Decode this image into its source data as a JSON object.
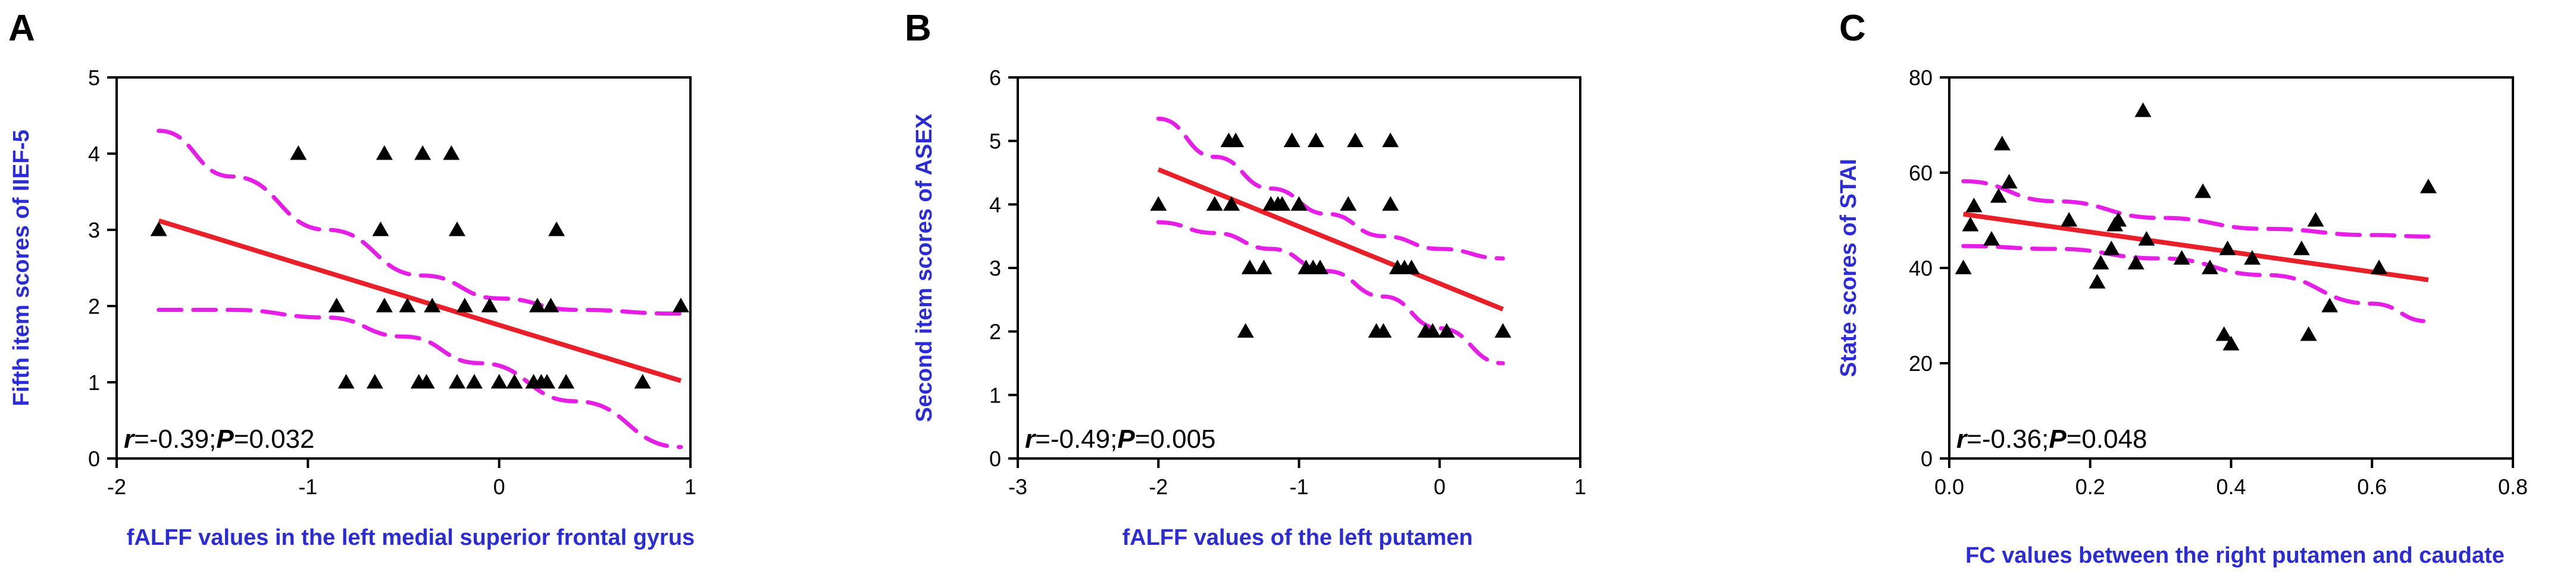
{
  "colors": {
    "regression_line": "#e8202a",
    "ci_band": "#e51fe5",
    "label_text": "#2c2cd6",
    "marker": "#000000"
  },
  "chart_data": [
    {
      "panel": "A",
      "type": "scatter",
      "ylabel": "Fifth item scores of IIEF-5",
      "xlabel": "fALFF values in the left  medial superior frontal gyrus",
      "xlim": [
        -2,
        1
      ],
      "ylim": [
        0,
        5
      ],
      "xticks": [
        "-2",
        "-1",
        "0",
        "1"
      ],
      "yticks": [
        "0",
        "1",
        "2",
        "3",
        "4",
        "5"
      ],
      "stat": {
        "r_label": "r",
        "r_value": "=-0.39;",
        "p_label": "P",
        "p_value": "=0.032"
      },
      "points": [
        [
          -1.78,
          3
        ],
        [
          -1.05,
          4
        ],
        [
          -0.85,
          2
        ],
        [
          -0.8,
          1
        ],
        [
          -0.65,
          1
        ],
        [
          -0.62,
          3
        ],
        [
          -0.6,
          4
        ],
        [
          -0.6,
          2
        ],
        [
          -0.48,
          2
        ],
        [
          -0.42,
          1
        ],
        [
          -0.4,
          4
        ],
        [
          -0.38,
          1
        ],
        [
          -0.35,
          2
        ],
        [
          -0.25,
          4
        ],
        [
          -0.22,
          3
        ],
        [
          -0.22,
          1
        ],
        [
          -0.18,
          2
        ],
        [
          -0.13,
          1
        ],
        [
          -0.05,
          2
        ],
        [
          0.0,
          1
        ],
        [
          0.08,
          1
        ],
        [
          0.18,
          1
        ],
        [
          0.2,
          2
        ],
        [
          0.22,
          1
        ],
        [
          0.25,
          1
        ],
        [
          0.27,
          2
        ],
        [
          0.3,
          3
        ],
        [
          0.35,
          1
        ],
        [
          0.75,
          1
        ],
        [
          0.95,
          2
        ]
      ],
      "fit": {
        "x": [
          -1.78,
          0.95
        ],
        "y": [
          3.12,
          1.02
        ]
      },
      "ci_upper": [
        [
          -1.78,
          4.3
        ],
        [
          -1.4,
          3.7
        ],
        [
          -0.9,
          3.0
        ],
        [
          -0.4,
          2.4
        ],
        [
          0.0,
          2.1
        ],
        [
          0.4,
          1.95
        ],
        [
          0.95,
          1.9
        ]
      ],
      "ci_lower": [
        [
          -1.78,
          1.95
        ],
        [
          -1.4,
          1.95
        ],
        [
          -0.9,
          1.85
        ],
        [
          -0.5,
          1.6
        ],
        [
          -0.1,
          1.25
        ],
        [
          0.4,
          0.75
        ],
        [
          0.95,
          0.15
        ]
      ]
    },
    {
      "panel": "B",
      "type": "scatter",
      "ylabel": "Second item scores of ASEX",
      "xlabel": "fALFF values of the left putamen",
      "xlim": [
        -3,
        1
      ],
      "ylim": [
        0,
        6
      ],
      "xticks": [
        "-3",
        "-2",
        "-1",
        "0",
        "1"
      ],
      "yticks": [
        "0",
        "1",
        "2",
        "3",
        "4",
        "5",
        "6"
      ],
      "stat": {
        "r_label": "r",
        "r_value": "=-0.49;",
        "p_label": "P",
        "p_value": "=0.005"
      },
      "points": [
        [
          -2.0,
          4
        ],
        [
          -1.6,
          4
        ],
        [
          -1.5,
          5
        ],
        [
          -1.48,
          4
        ],
        [
          -1.45,
          5
        ],
        [
          -1.38,
          2
        ],
        [
          -1.35,
          3
        ],
        [
          -1.25,
          3
        ],
        [
          -1.2,
          4
        ],
        [
          -1.15,
          4
        ],
        [
          -1.12,
          4
        ],
        [
          -1.05,
          5
        ],
        [
          -1.0,
          4
        ],
        [
          -0.95,
          3
        ],
        [
          -0.9,
          3
        ],
        [
          -0.88,
          5
        ],
        [
          -0.85,
          3
        ],
        [
          -0.65,
          4
        ],
        [
          -0.6,
          5
        ],
        [
          -0.45,
          2
        ],
        [
          -0.4,
          2
        ],
        [
          -0.35,
          4
        ],
        [
          -0.35,
          5
        ],
        [
          -0.3,
          3
        ],
        [
          -0.25,
          3
        ],
        [
          -0.2,
          3
        ],
        [
          -0.1,
          2
        ],
        [
          -0.05,
          2
        ],
        [
          0.05,
          2
        ],
        [
          0.45,
          2
        ]
      ],
      "fit": {
        "x": [
          -2.0,
          0.45
        ],
        "y": [
          4.55,
          2.35
        ]
      },
      "ci_upper": [
        [
          -2.0,
          5.35
        ],
        [
          -1.6,
          4.75
        ],
        [
          -1.2,
          4.25
        ],
        [
          -0.8,
          3.85
        ],
        [
          -0.4,
          3.5
        ],
        [
          0.0,
          3.3
        ],
        [
          0.45,
          3.15
        ]
      ],
      "ci_lower": [
        [
          -2.0,
          3.72
        ],
        [
          -1.6,
          3.55
        ],
        [
          -1.2,
          3.3
        ],
        [
          -0.8,
          2.95
        ],
        [
          -0.4,
          2.55
        ],
        [
          0.0,
          2.05
        ],
        [
          0.45,
          1.5
        ]
      ]
    },
    {
      "panel": "C",
      "type": "scatter",
      "ylabel": "State scores of STAI",
      "xlabel": "FC values between the right putamen and caudate",
      "xlim": [
        0,
        0.8
      ],
      "ylim": [
        0,
        80
      ],
      "xticks": [
        "0.0",
        "0.2",
        "0.4",
        "0.6",
        "0.8"
      ],
      "yticks": [
        "0",
        "20",
        "40",
        "60",
        "80"
      ],
      "stat": {
        "r_label": "r",
        "r_value": "=-0.36;",
        "p_label": "P",
        "p_value": "=0.048"
      },
      "points": [
        [
          0.02,
          40
        ],
        [
          0.03,
          49
        ],
        [
          0.035,
          53
        ],
        [
          0.06,
          46
        ],
        [
          0.07,
          55
        ],
        [
          0.075,
          66
        ],
        [
          0.085,
          58
        ],
        [
          0.17,
          50
        ],
        [
          0.21,
          37
        ],
        [
          0.215,
          41
        ],
        [
          0.23,
          44
        ],
        [
          0.235,
          49
        ],
        [
          0.24,
          50
        ],
        [
          0.265,
          41
        ],
        [
          0.275,
          73
        ],
        [
          0.28,
          46
        ],
        [
          0.33,
          42
        ],
        [
          0.36,
          56
        ],
        [
          0.37,
          40
        ],
        [
          0.39,
          26
        ],
        [
          0.395,
          44
        ],
        [
          0.4,
          24
        ],
        [
          0.43,
          42
        ],
        [
          0.5,
          44
        ],
        [
          0.51,
          26
        ],
        [
          0.52,
          50
        ],
        [
          0.54,
          32
        ],
        [
          0.61,
          40
        ],
        [
          0.68,
          57
        ]
      ],
      "fit": {
        "x": [
          0.02,
          0.68
        ],
        "y": [
          51.3,
          37.5
        ]
      },
      "ci_upper": [
        [
          0.02,
          58.2
        ],
        [
          0.15,
          54.0
        ],
        [
          0.3,
          50.5
        ],
        [
          0.45,
          48.2
        ],
        [
          0.6,
          46.9
        ],
        [
          0.68,
          46.6
        ]
      ],
      "ci_lower": [
        [
          0.02,
          44.6
        ],
        [
          0.15,
          44.0
        ],
        [
          0.3,
          42.0
        ],
        [
          0.45,
          38.5
        ],
        [
          0.6,
          32.5
        ],
        [
          0.68,
          28.8
        ]
      ]
    }
  ]
}
